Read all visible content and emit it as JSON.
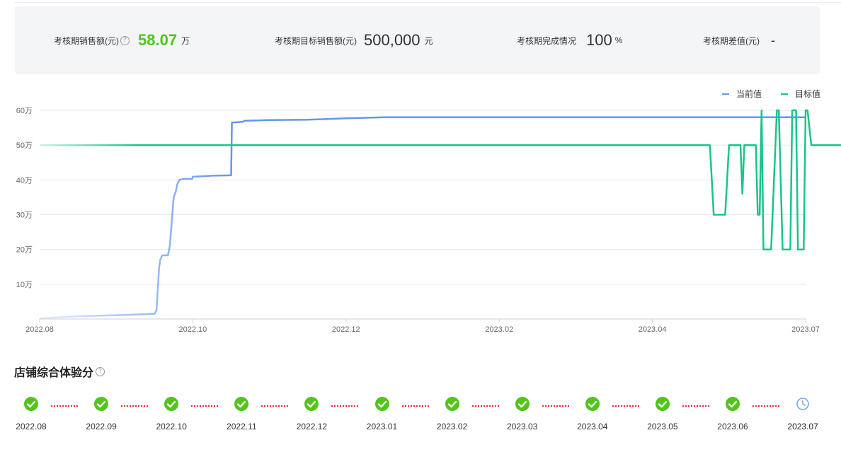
{
  "kpi": {
    "sales_label": "考核期销售额(元)",
    "sales_value": "58.07",
    "sales_unit": "万",
    "target_label": "考核期目标销售额(元)",
    "target_value": "500,000",
    "target_unit": "元",
    "completion_label": "考核期完成情况",
    "completion_value": "100",
    "completion_unit": "%",
    "gap_label": "考核期差值(元)",
    "gap_value": "-"
  },
  "chart_data": {
    "type": "line",
    "title": "",
    "xlabel": "",
    "ylabel": "",
    "ylim": [
      0,
      60
    ],
    "y_ticks": [
      "10万",
      "20万",
      "30万",
      "40万",
      "50万",
      "60万"
    ],
    "y_tick_values": [
      10,
      20,
      30,
      40,
      50,
      60
    ],
    "x_ticks": [
      "2022.08",
      "2022.10",
      "2022.12",
      "2023.02",
      "2023.04",
      "2023.07"
    ],
    "x_tick_positions": [
      0,
      2,
      4,
      6,
      8,
      10
    ],
    "grid": true,
    "legend": "top-right",
    "series": [
      {
        "name": "当前值",
        "color": "#6495ED",
        "points": [
          [
            0,
            0.2
          ],
          [
            1,
            0.8
          ],
          [
            2,
            1.1
          ],
          [
            2.8,
            1.4
          ],
          [
            3.0,
            1.5
          ],
          [
            3.05,
            2.5
          ],
          [
            3.12,
            15
          ],
          [
            3.15,
            17
          ],
          [
            3.2,
            18.3
          ],
          [
            3.35,
            18.3
          ],
          [
            3.4,
            21
          ],
          [
            3.45,
            28
          ],
          [
            3.5,
            35
          ],
          [
            3.55,
            36.5
          ],
          [
            3.6,
            39
          ],
          [
            3.65,
            40
          ],
          [
            3.75,
            40.3
          ],
          [
            3.98,
            40.3
          ],
          [
            4.0,
            40.9
          ],
          [
            4.2,
            41
          ],
          [
            4.5,
            41.2
          ],
          [
            5.0,
            41.3
          ],
          [
            5.02,
            56.5
          ],
          [
            5.3,
            56.7
          ],
          [
            5.35,
            57
          ],
          [
            6.0,
            57.2
          ],
          [
            7.0,
            57.3
          ],
          [
            8.0,
            57.7
          ],
          [
            9.0,
            58
          ],
          [
            10.0,
            58
          ],
          [
            11.0,
            58
          ],
          [
            12.0,
            58
          ],
          [
            12.8,
            58
          ],
          [
            13.0,
            58
          ],
          [
            14.0,
            58
          ],
          [
            15.0,
            58
          ],
          [
            16.0,
            58
          ],
          [
            17.0,
            58
          ],
          [
            18.0,
            58
          ],
          [
            19.0,
            58
          ],
          [
            20.0,
            58
          ]
        ]
      },
      {
        "name": "目标值",
        "color": "#19C48A",
        "points": [
          [
            0,
            50
          ],
          [
            17.5,
            50
          ],
          [
            17.6,
            30
          ],
          [
            17.9,
            30
          ],
          [
            18.0,
            50
          ],
          [
            18.3,
            50
          ],
          [
            18.35,
            36
          ],
          [
            18.4,
            50
          ],
          [
            18.7,
            50
          ],
          [
            18.75,
            30
          ],
          [
            18.8,
            30
          ],
          [
            18.85,
            60
          ],
          [
            18.9,
            20
          ],
          [
            19.1,
            20
          ],
          [
            19.25,
            60
          ],
          [
            19.3,
            60
          ],
          [
            19.4,
            20
          ],
          [
            19.6,
            20
          ],
          [
            19.65,
            60
          ],
          [
            19.75,
            60
          ],
          [
            19.8,
            20
          ],
          [
            19.95,
            20
          ],
          [
            20.0,
            60
          ],
          [
            20.05,
            60
          ],
          [
            20.15,
            50
          ],
          [
            21.1,
            50
          ],
          [
            21.2,
            20
          ],
          [
            21.25,
            50
          ]
        ]
      }
    ]
  },
  "score": {
    "title": "店铺综合体验分",
    "months": [
      {
        "label": "2022.08",
        "status": "done",
        "icon": "check-circle-icon"
      },
      {
        "label": "2022.09",
        "status": "done",
        "icon": "check-circle-icon"
      },
      {
        "label": "2022.10",
        "status": "done",
        "icon": "check-circle-icon"
      },
      {
        "label": "2022.11",
        "status": "done",
        "icon": "check-circle-icon"
      },
      {
        "label": "2022.12",
        "status": "done",
        "icon": "check-circle-icon"
      },
      {
        "label": "2023.01",
        "status": "done",
        "icon": "check-circle-icon"
      },
      {
        "label": "2023.02",
        "status": "done",
        "icon": "check-circle-icon"
      },
      {
        "label": "2023.03",
        "status": "done",
        "icon": "check-circle-icon"
      },
      {
        "label": "2023.04",
        "status": "done",
        "icon": "check-circle-icon"
      },
      {
        "label": "2023.05",
        "status": "done",
        "icon": "check-circle-icon"
      },
      {
        "label": "2023.06",
        "status": "done",
        "icon": "check-circle-icon"
      },
      {
        "label": "2023.07",
        "status": "pending",
        "icon": "clock-icon"
      }
    ]
  },
  "colors": {
    "check": "#52c41a",
    "pending": "#7aa7e6",
    "connector": "#f5222d",
    "kpi_highlight": "#52c41a"
  }
}
